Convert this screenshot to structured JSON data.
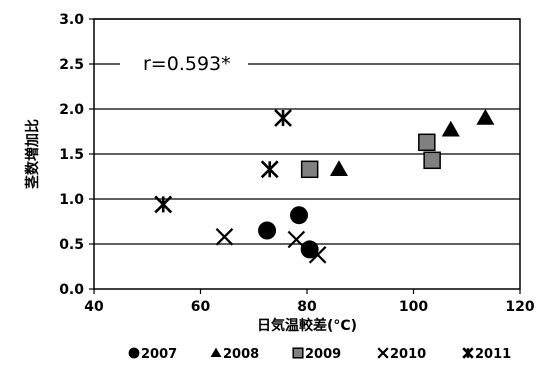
{
  "chart_data": {
    "type": "scatter",
    "title": "",
    "xlabel": "日気温較差(°C)",
    "ylabel": "茎数増加比",
    "xlim": [
      40,
      120
    ],
    "ylim": [
      0.0,
      3.0
    ],
    "x_ticks": [
      "40",
      "60",
      "80",
      "100",
      "120"
    ],
    "y_ticks": [
      "0.0",
      "0.5",
      "1.0",
      "1.5",
      "2.0",
      "2.5",
      "3.0"
    ],
    "grid": "horizontal",
    "legend_position": "bottom",
    "annotation": "r=0.593*",
    "series": [
      {
        "name": "2007",
        "marker": "circle",
        "color": "#000000",
        "points": [
          [
            72.5,
            0.65
          ],
          [
            78.5,
            0.82
          ],
          [
            80.5,
            0.44
          ]
        ]
      },
      {
        "name": "2008",
        "marker": "triangle",
        "color": "#000000",
        "points": [
          [
            86.0,
            1.33
          ],
          [
            107.0,
            1.77
          ],
          [
            113.5,
            1.9
          ]
        ]
      },
      {
        "name": "2009",
        "marker": "square",
        "color": "#808080",
        "points": [
          [
            80.5,
            1.33
          ],
          [
            102.5,
            1.63
          ],
          [
            103.5,
            1.43
          ]
        ]
      },
      {
        "name": "2010",
        "marker": "x",
        "color": "#000000",
        "points": [
          [
            64.5,
            0.58
          ],
          [
            78.0,
            0.55
          ],
          [
            82.0,
            0.38
          ]
        ]
      },
      {
        "name": "2011",
        "marker": "star",
        "color": "#000000",
        "points": [
          [
            53.0,
            0.94
          ],
          [
            73.0,
            1.33
          ],
          [
            75.5,
            1.9
          ]
        ]
      }
    ]
  }
}
